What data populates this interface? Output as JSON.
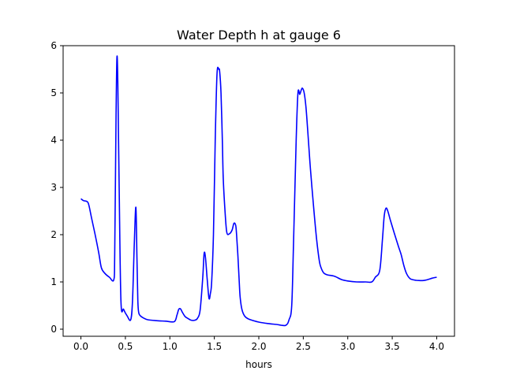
{
  "chart_data": {
    "type": "line",
    "title": "Water Depth h at gauge 6",
    "xlabel": "hours",
    "ylabel": "",
    "xlim": [
      -0.2,
      4.2
    ],
    "ylim": [
      -0.15,
      6.0
    ],
    "xticks": [
      0.0,
      0.5,
      1.0,
      1.5,
      2.0,
      2.5,
      3.0,
      3.5,
      4.0
    ],
    "xtick_labels": [
      "0.0",
      "0.5",
      "1.0",
      "1.5",
      "2.0",
      "2.5",
      "3.0",
      "3.5",
      "4.0"
    ],
    "yticks": [
      0,
      1,
      2,
      3,
      4,
      5,
      6
    ],
    "ytick_labels": [
      "0",
      "1",
      "2",
      "3",
      "4",
      "5",
      "6"
    ],
    "grid": false,
    "series_color": "#0000ff",
    "series": [
      {
        "x": [
          0.0,
          0.03,
          0.07,
          0.09,
          0.12,
          0.16,
          0.2,
          0.23,
          0.27,
          0.32,
          0.37,
          0.38,
          0.395,
          0.405,
          0.415,
          0.43,
          0.45,
          0.48,
          0.52,
          0.56,
          0.58,
          0.6,
          0.618,
          0.63,
          0.64,
          0.65,
          0.67,
          0.7,
          0.75,
          0.85,
          0.95,
          1.05,
          1.08,
          1.1,
          1.12,
          1.14,
          1.17,
          1.2,
          1.24,
          1.28,
          1.31,
          1.34,
          1.37,
          1.385,
          1.4,
          1.42,
          1.44,
          1.455,
          1.47,
          1.49,
          1.51,
          1.53,
          1.55,
          1.56,
          1.575,
          1.59,
          1.6,
          1.62,
          1.64,
          1.67,
          1.7,
          1.72,
          1.74,
          1.75,
          1.765,
          1.78,
          1.79,
          1.81,
          1.84,
          1.88,
          1.94,
          2.0,
          2.1,
          2.2,
          2.3,
          2.34,
          2.37,
          2.39,
          2.42,
          2.44,
          2.46,
          2.475,
          2.49,
          2.51,
          2.53,
          2.55,
          2.58,
          2.62,
          2.65,
          2.68,
          2.7,
          2.73,
          2.77,
          2.85,
          2.93,
          3.0,
          3.1,
          3.2,
          3.27,
          3.31,
          3.36,
          3.39,
          3.41,
          3.43,
          3.45,
          3.48,
          3.52,
          3.57,
          3.6,
          3.63,
          3.66,
          3.7,
          3.75,
          3.8,
          3.85,
          3.9,
          3.95,
          4.0
        ],
        "y": [
          2.76,
          2.72,
          2.7,
          2.62,
          2.35,
          2.0,
          1.62,
          1.3,
          1.18,
          1.1,
          1.05,
          1.6,
          4.5,
          5.75,
          5.2,
          3.0,
          0.6,
          0.42,
          0.28,
          0.2,
          0.6,
          1.8,
          2.58,
          1.5,
          0.6,
          0.35,
          0.28,
          0.24,
          0.2,
          0.18,
          0.17,
          0.16,
          0.3,
          0.42,
          0.43,
          0.36,
          0.27,
          0.23,
          0.19,
          0.19,
          0.23,
          0.4,
          1.1,
          1.6,
          1.52,
          1.05,
          0.65,
          0.75,
          1.0,
          2.0,
          4.0,
          5.4,
          5.5,
          5.45,
          5.0,
          4.0,
          3.2,
          2.5,
          2.05,
          2.02,
          2.1,
          2.24,
          2.2,
          2.0,
          1.55,
          1.0,
          0.68,
          0.42,
          0.28,
          0.22,
          0.18,
          0.15,
          0.12,
          0.1,
          0.08,
          0.2,
          0.5,
          1.8,
          4.0,
          5.0,
          4.97,
          5.05,
          5.1,
          5.0,
          4.7,
          4.2,
          3.4,
          2.5,
          1.9,
          1.45,
          1.3,
          1.19,
          1.15,
          1.12,
          1.05,
          1.02,
          1.0,
          1.0,
          1.0,
          1.1,
          1.25,
          1.9,
          2.4,
          2.56,
          2.5,
          2.3,
          2.05,
          1.75,
          1.58,
          1.35,
          1.18,
          1.07,
          1.04,
          1.03,
          1.03,
          1.05,
          1.08,
          1.1
        ]
      }
    ]
  }
}
